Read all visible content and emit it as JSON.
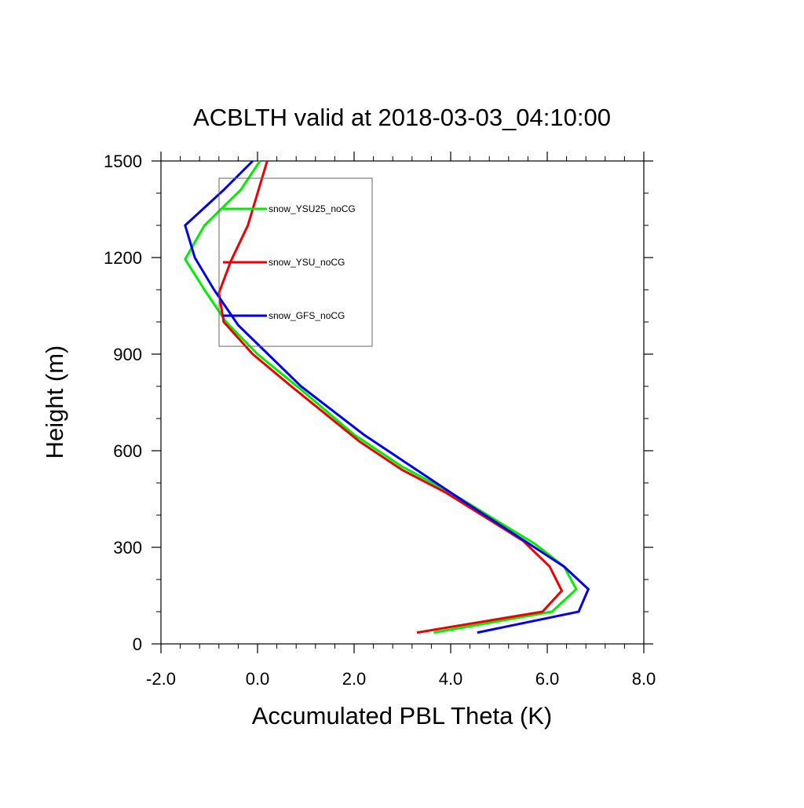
{
  "chart_data": {
    "type": "line",
    "title": "ACBLTH valid at 2018-03-03_04:10:00",
    "xlabel": "Accumulated PBL Theta (K)",
    "ylabel": "Height (m)",
    "xlim": [
      -2.0,
      8.0
    ],
    "ylim": [
      0,
      1500
    ],
    "xticks": [
      -2.0,
      0.0,
      2.0,
      4.0,
      6.0,
      8.0
    ],
    "xtick_labels": [
      "-2.0",
      "0.0",
      "2.0",
      "4.0",
      "6.0",
      "8.0"
    ],
    "yticks": [
      0,
      300,
      600,
      900,
      1200,
      1500
    ],
    "ytick_labels": [
      "0",
      "300",
      "600",
      "900",
      "1200",
      "1500"
    ],
    "grid": false,
    "legend_position": "top-left",
    "series": [
      {
        "name": "snow_YSU25_noCG",
        "color": "#00ee00",
        "x": [
          3.65,
          6.1,
          6.6,
          6.35,
          5.75,
          4.0,
          3.0,
          2.0,
          0.9,
          0.0,
          -0.65,
          -1.1,
          -1.5,
          -1.1,
          -0.35,
          0.05
        ],
        "y": [
          35,
          100,
          170,
          240,
          310,
          470,
          550,
          650,
          790,
          900,
          1000,
          1100,
          1195,
          1300,
          1410,
          1500
        ]
      },
      {
        "name": "snow_YSU_noCG",
        "color": "#ee0000",
        "x": [
          3.3,
          5.9,
          6.3,
          6.05,
          5.5,
          3.9,
          3.0,
          2.1,
          0.7,
          -0.1,
          -0.7,
          -0.8,
          -0.55,
          -0.2,
          0.2
        ],
        "y": [
          35,
          100,
          165,
          240,
          320,
          470,
          540,
          630,
          800,
          900,
          1000,
          1090,
          1190,
          1300,
          1500
        ]
      },
      {
        "name": "snow_GFS_noCG",
        "color": "#0000ee",
        "x": [
          4.55,
          6.65,
          6.85,
          6.35,
          4.3,
          2.2,
          0.9,
          -0.4,
          -0.9,
          -1.3,
          -1.5,
          -0.7,
          -0.1
        ],
        "y": [
          35,
          100,
          170,
          240,
          440,
          650,
          800,
          990,
          1100,
          1200,
          1300,
          1410,
          1500
        ]
      }
    ]
  }
}
